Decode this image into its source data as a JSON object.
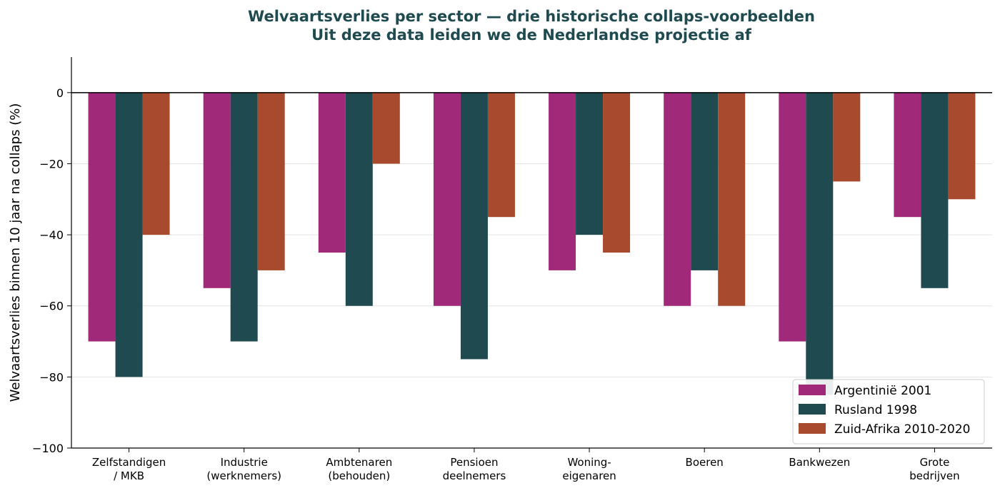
{
  "chart_data": {
    "type": "bar",
    "title": "Welvaartsverlies per sector — drie historische collaps-voorbeelden",
    "subtitle": "Uit deze data leiden we de Nederlandse projectie af",
    "xlabel": "",
    "ylabel": "Welvaartsverlies binnen 10 jaar na collaps (%)",
    "ylim": [
      -100,
      10
    ],
    "yticks": [
      0,
      -20,
      -40,
      -60,
      -80,
      -100
    ],
    "ytick_labels": [
      "0",
      "−20",
      "−40",
      "−60",
      "−80",
      "−100"
    ],
    "grid": "horizontal",
    "legend_position": "bottom-right",
    "categories": [
      [
        "Zelfstandigen",
        "/ MKB"
      ],
      [
        "Industrie",
        "(werknemers)"
      ],
      [
        "Ambtenaren",
        "(behouden)"
      ],
      [
        "Pensioen",
        "deelnemers"
      ],
      [
        "Woning-",
        "eigenaren"
      ],
      [
        "Boeren"
      ],
      [
        "Bankwezen"
      ],
      [
        "Grote",
        "bedrijven"
      ]
    ],
    "series": [
      {
        "name": "Argentinië 2001",
        "color": "#a0297a",
        "values": [
          -70,
          -55,
          -45,
          -60,
          -50,
          -60,
          -70,
          -35
        ]
      },
      {
        "name": "Rusland 1998",
        "color": "#1e4a50",
        "values": [
          -80,
          -70,
          -60,
          -75,
          -40,
          -50,
          -85,
          -55
        ]
      },
      {
        "name": "Zuid-Afrika 2010-2020",
        "color": "#a84a2e",
        "values": [
          -40,
          -50,
          -20,
          -35,
          -45,
          -60,
          -25,
          -30
        ]
      }
    ]
  }
}
